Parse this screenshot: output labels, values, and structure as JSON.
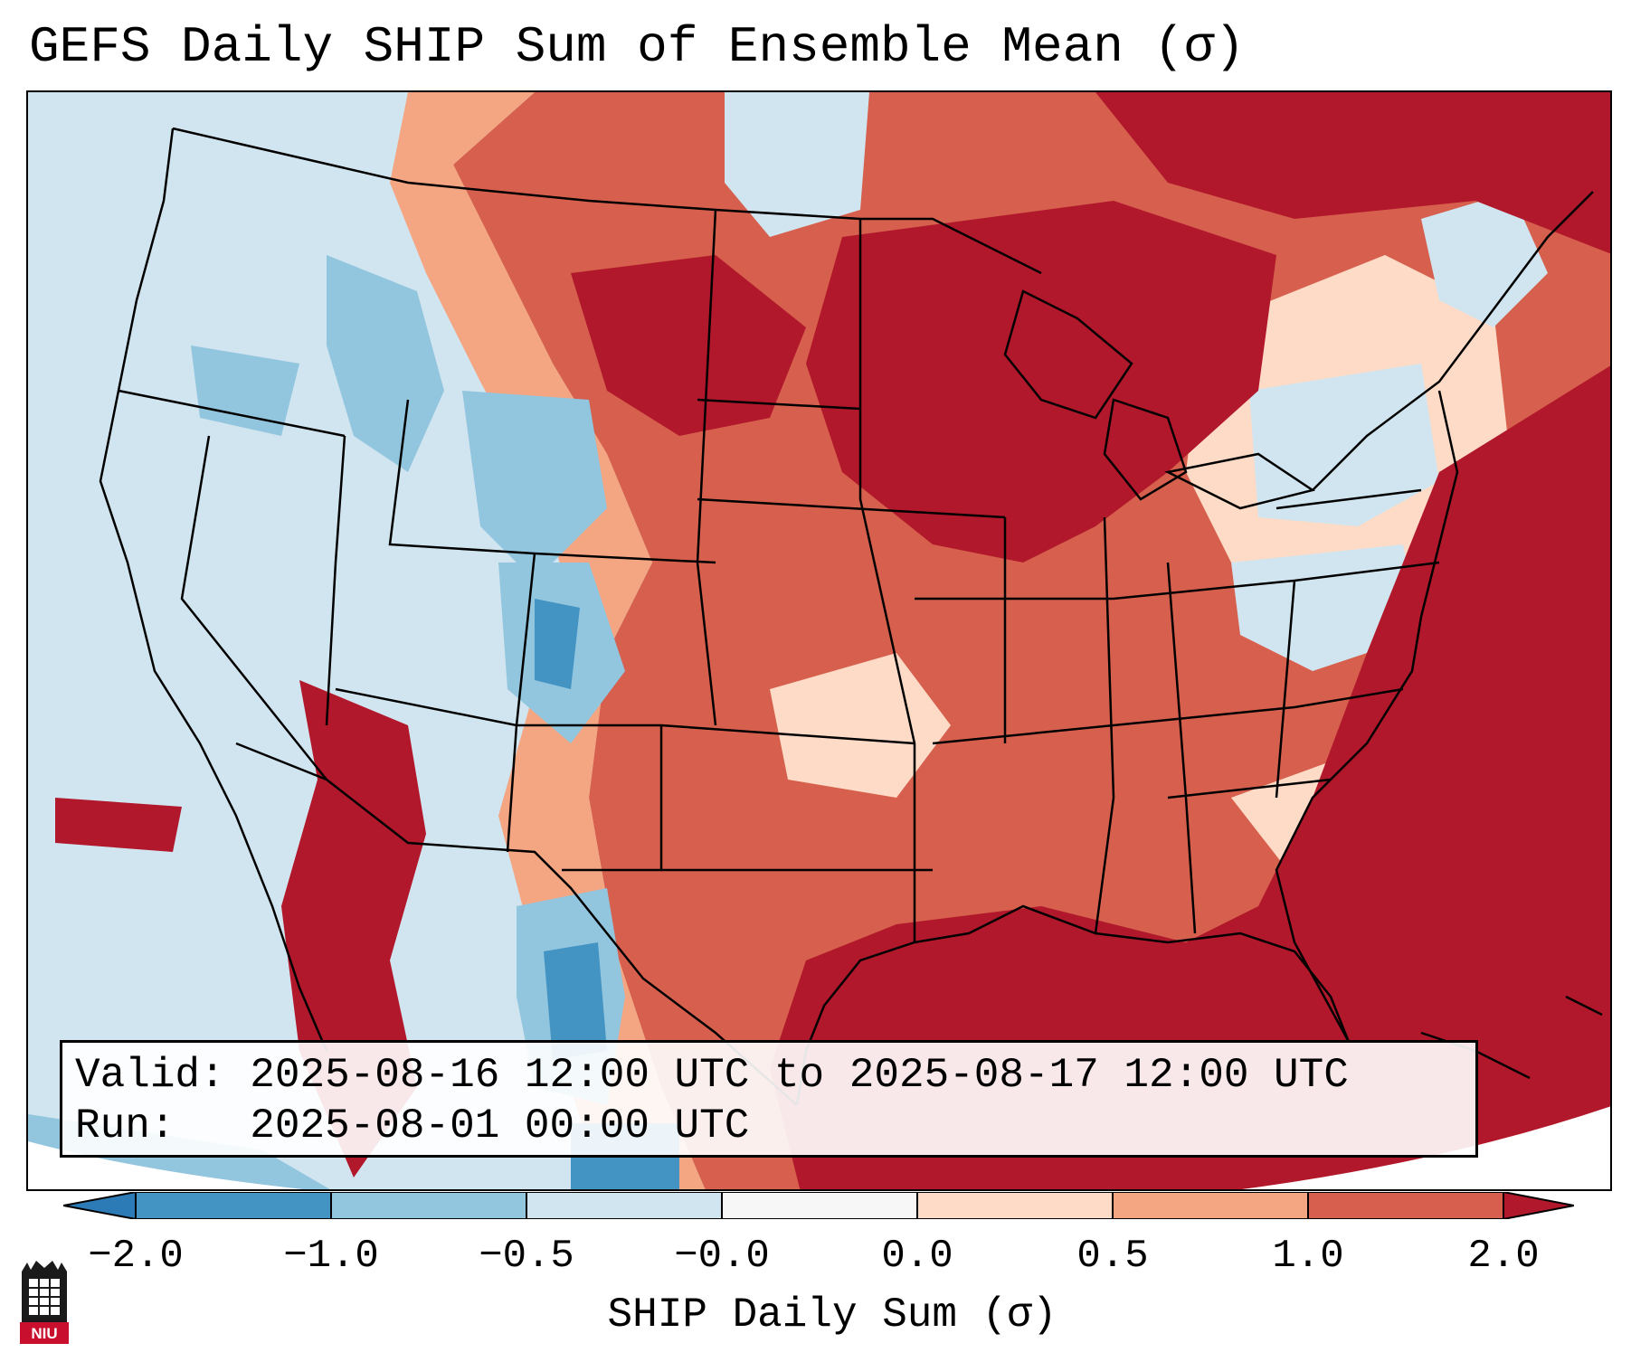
{
  "title": "GEFS Daily SHIP Sum of Ensemble Mean (σ)",
  "info": {
    "valid_label": "Valid:",
    "valid_value": "2025-08-16 12:00 UTC to 2025-08-17 12:00 UTC",
    "run_label": "Run:",
    "run_value": "2025-08-01 00:00 UTC"
  },
  "colorbar": {
    "label": "SHIP Daily Sum (σ)",
    "ticks": [
      "−2.0",
      "−1.0",
      "−0.5",
      "−0.0",
      "0.0",
      "0.5",
      "1.0",
      "2.0"
    ],
    "colors": {
      "lt_m2": "#2c7bb6",
      "m2_m1": "#4393c3",
      "m1_m05": "#92c5de",
      "m05_0": "#d1e5f0",
      "zero": "#f7f7f7",
      "p0_05": "#fddbc7",
      "p05_1": "#f4a582",
      "p1_2": "#d6604d",
      "gt_2": "#b2182b"
    }
  },
  "map": {
    "region": "Contiguous United States",
    "field": "SHIP daily sum anomaly",
    "pattern_note": "positive anomalies over the central and eastern US, Gulf of Mexico and Atlantic; negative anomalies over the West and Rockies"
  },
  "logo": {
    "text": "NIU"
  }
}
